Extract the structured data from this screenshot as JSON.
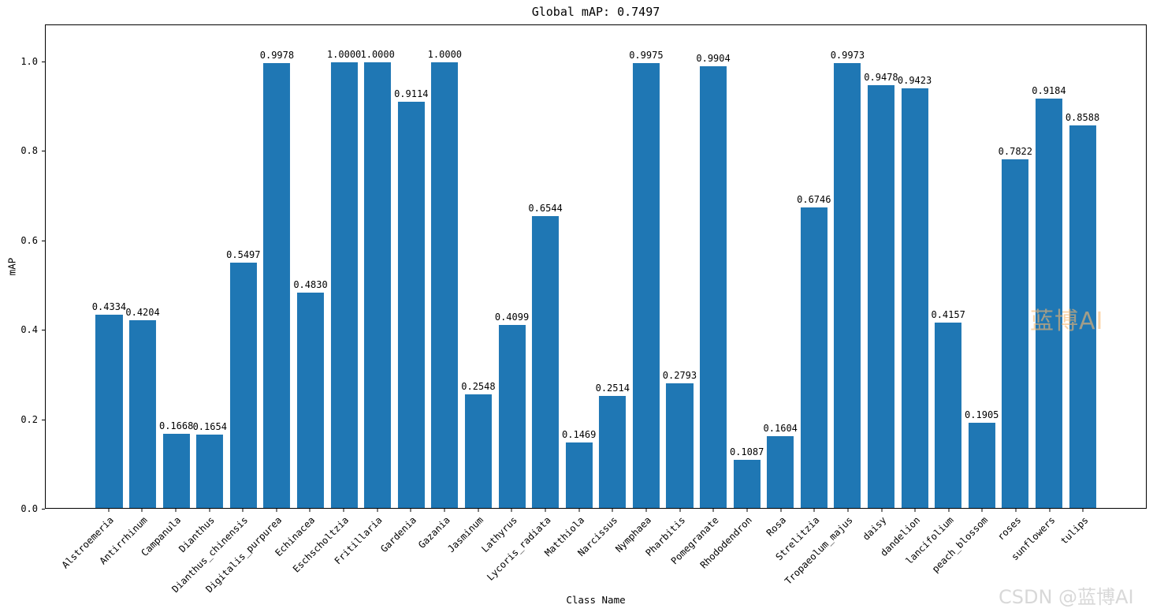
{
  "watermarks": {
    "plot_overlay": "蓝博AI",
    "corner": "CSDN @蓝博AI"
  },
  "chart_data": {
    "type": "bar",
    "title": "Global mAP: 0.7497",
    "xlabel": "Class Name",
    "ylabel": "mAP",
    "ylim": [
      0,
      1.083
    ],
    "yticks": [
      0.0,
      0.2,
      0.4,
      0.6,
      0.8,
      1.0
    ],
    "grid": false,
    "legend": "none",
    "bar_color": "#1f77b4",
    "value_label_decimals": 4,
    "categories": [
      "Alstroemeria",
      "Antirrhinum",
      "Campanula",
      "Dianthus",
      "Dianthus_chinensis",
      "Digitalis_purpurea",
      "Echinacea",
      "Eschscholtzia",
      "Fritillaria",
      "Gardenia",
      "Gazania",
      "Jasminum",
      "Lathyrus",
      "Lycoris_radiata",
      "Matthiola",
      "Narcissus",
      "Nymphaea",
      "Pharbitis",
      "Pomegranate",
      "Rhododendron",
      "Rosa",
      "Strelitzia",
      "Tropaeolum_majus",
      "daisy",
      "dandelion",
      "lancifolium",
      "peach_blossom",
      "roses",
      "sunflowers",
      "tulips"
    ],
    "values": [
      0.4334,
      0.4204,
      0.1668,
      0.1654,
      0.5497,
      0.9978,
      0.483,
      1.0,
      1.0,
      0.9114,
      1.0,
      0.2548,
      0.4099,
      0.6544,
      0.1469,
      0.2514,
      0.9975,
      0.2793,
      0.9904,
      0.1087,
      0.1604,
      0.6746,
      0.9973,
      0.9478,
      0.9423,
      0.4157,
      0.1905,
      0.7822,
      0.9184,
      0.8588
    ]
  }
}
